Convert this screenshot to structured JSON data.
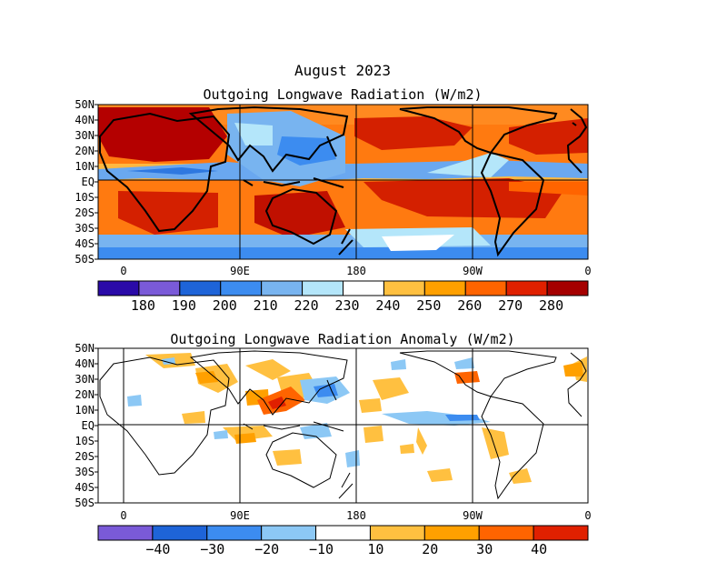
{
  "main_title": "August 2023",
  "panels": [
    {
      "title": "Outgoing Longwave Radiation (W/m2)",
      "lat_labels": [
        "50N",
        "40N",
        "30N",
        "20N",
        "10N",
        "EQ",
        "10S",
        "20S",
        "30S",
        "40S",
        "50S"
      ],
      "lon_labels": [
        "0",
        "90E",
        "180",
        "90W",
        "0"
      ],
      "colorbar": {
        "colors": [
          "#2a0aa8",
          "#7a5ad8",
          "#1e64d8",
          "#3c8cf0",
          "#78b4f0",
          "#b4e6fa",
          "#ffffff",
          "#ffc040",
          "#ffa000",
          "#ff6400",
          "#e02000",
          "#a50000"
        ],
        "labels": [
          "180",
          "190",
          "200",
          "210",
          "220",
          "230",
          "240",
          "250",
          "260",
          "270",
          "280"
        ]
      }
    },
    {
      "title": "Outgoing Longwave Radiation Anomaly (W/m2)",
      "lat_labels": [
        "50N",
        "40N",
        "30N",
        "20N",
        "10N",
        "EQ",
        "10S",
        "20S",
        "30S",
        "40S",
        "50S"
      ],
      "lon_labels": [
        "0",
        "90E",
        "180",
        "90W",
        "0"
      ],
      "colorbar": {
        "colors": [
          "#7a5ad8",
          "#1e64d8",
          "#3c8cf0",
          "#8cc8f5",
          "#ffffff",
          "#ffc040",
          "#ffa000",
          "#ff6400",
          "#e02000"
        ],
        "labels": [
          "−40",
          "−30",
          "−20",
          "−10",
          "10",
          "20",
          "30",
          "40"
        ]
      }
    }
  ]
}
